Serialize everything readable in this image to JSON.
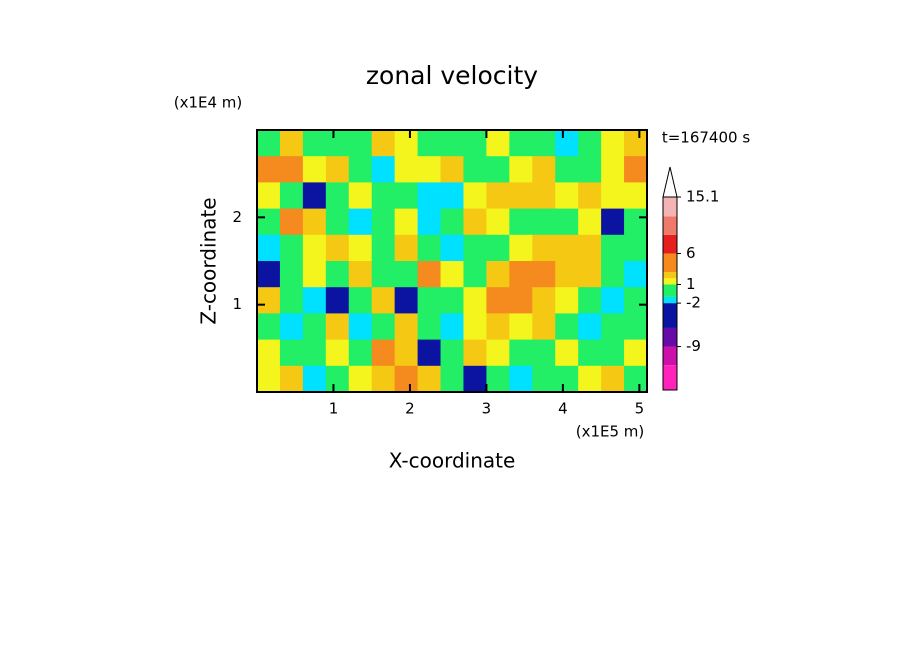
{
  "chart_data": {
    "type": "contourf",
    "title": "zonal velocity",
    "x_label": "X-coordinate",
    "y_label": "Z-coordinate",
    "x_unit": "(x1E5 m)",
    "y_unit": "(x1E4 m)",
    "time_label": "t=167400 s",
    "xlim": [
      0,
      5.1
    ],
    "xticks": [
      1,
      2,
      3,
      4,
      5
    ],
    "ylim": [
      0,
      3
    ],
    "yticks": [
      1,
      2
    ],
    "field": [
      [
        0,
        2,
        0,
        -1,
        0,
        2,
        1.5,
        0,
        -1,
        0,
        1.5,
        0,
        -1,
        -1.5,
        0,
        1.5,
        2
      ],
      [
        4,
        4,
        1.5,
        2,
        0,
        -1.5,
        1.5,
        1.5,
        2,
        0,
        0,
        1.5,
        2,
        0,
        0,
        1.5,
        4
      ],
      [
        1.5,
        0,
        -4,
        0,
        1.5,
        0,
        0,
        -1.5,
        -1.5,
        1.5,
        2,
        2.5,
        2.5,
        1.5,
        2.5,
        1.5,
        1.5
      ],
      [
        0,
        4,
        2,
        0,
        -1.5,
        0,
        1.5,
        -1.5,
        0,
        2,
        1.5,
        0,
        0,
        0,
        1.5,
        -4,
        0
      ],
      [
        -1.5,
        0,
        1.5,
        2,
        1.5,
        0,
        2,
        0,
        -1.5,
        0,
        0,
        1.5,
        2,
        2.5,
        2,
        0,
        0
      ],
      [
        -4,
        0,
        1.5,
        0,
        2,
        0,
        0,
        4,
        1.5,
        0,
        2,
        4,
        4,
        2,
        2,
        0,
        -1.5
      ],
      [
        2,
        0,
        -1.5,
        -4,
        0,
        2,
        -4,
        0,
        0,
        1.5,
        4,
        4,
        2,
        1.5,
        0,
        -1.5,
        0
      ],
      [
        0,
        -1.5,
        0,
        2,
        -1.5,
        0,
        2,
        0,
        -1.5,
        1.5,
        2,
        1.5,
        2,
        0,
        -1.5,
        0,
        0
      ],
      [
        1.5,
        0,
        0,
        1.5,
        0,
        4,
        2,
        -4,
        0,
        2,
        1.5,
        0,
        0,
        1.5,
        0,
        0,
        1.5
      ],
      [
        1.5,
        2,
        -1.5,
        0,
        1.5,
        2,
        5,
        2,
        0,
        -4,
        0,
        -1.5,
        0,
        0,
        1.5,
        2,
        0
      ]
    ],
    "levels": [
      -16,
      -12,
      -9,
      -6,
      -2,
      -1,
      1,
      2,
      3,
      6,
      9,
      12,
      15.1
    ],
    "colors": [
      "#ff22bb",
      "#cc11aa",
      "#660aa8",
      "#0a14a0",
      "#00e0ff",
      "#22ee66",
      "#f5f51e",
      "#f5c814",
      "#f58a1e",
      "#e61e1e",
      "#f07a6a",
      "#f5b4b4"
    ],
    "over_color": "#ffffff",
    "colorbar_ticks": [
      15.1,
      6,
      1,
      -2,
      -9
    ]
  }
}
